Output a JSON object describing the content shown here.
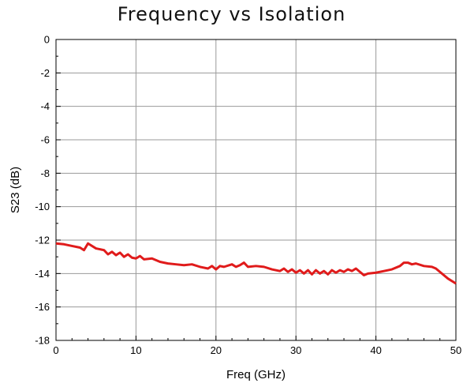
{
  "chart_data": {
    "type": "line",
    "title": "Frequency vs Isolation",
    "xlabel": "Freq  (GHz)",
    "ylabel": "S23  (dB)",
    "xlim": [
      0,
      50
    ],
    "ylim": [
      -18,
      0
    ],
    "x_ticks": [
      0,
      10,
      20,
      30,
      40,
      50
    ],
    "y_ticks": [
      0,
      -2,
      -4,
      -6,
      -8,
      -10,
      -12,
      -14,
      -16,
      -18
    ],
    "grid": true,
    "line_color": "#e01b1b",
    "series": [
      {
        "x": [
          0,
          1,
          2,
          3,
          3.5,
          4,
          5,
          6,
          6.5,
          7,
          7.5,
          8,
          8.5,
          9,
          9.5,
          10,
          10.5,
          11,
          12,
          13,
          14,
          15,
          16,
          17,
          18,
          19,
          19.5,
          20,
          20.5,
          21,
          22,
          22.5,
          23,
          23.5,
          24,
          25,
          26,
          27,
          28,
          28.5,
          29,
          29.5,
          30,
          30.5,
          31,
          31.5,
          32,
          32.5,
          33,
          33.5,
          34,
          34.5,
          35,
          35.5,
          36,
          36.5,
          37,
          37.5,
          38,
          38.5,
          39,
          40,
          41,
          42,
          43,
          43.5,
          44,
          44.5,
          45,
          46,
          47,
          47.5,
          48,
          49,
          50
        ],
        "y": [
          -12.2,
          -12.25,
          -12.35,
          -12.45,
          -12.6,
          -12.2,
          -12.5,
          -12.6,
          -12.85,
          -12.7,
          -12.9,
          -12.75,
          -13.0,
          -12.85,
          -13.05,
          -13.1,
          -12.95,
          -13.15,
          -13.1,
          -13.3,
          -13.4,
          -13.45,
          -13.5,
          -13.45,
          -13.6,
          -13.7,
          -13.55,
          -13.75,
          -13.55,
          -13.6,
          -13.45,
          -13.6,
          -13.5,
          -13.35,
          -13.6,
          -13.55,
          -13.6,
          -13.75,
          -13.85,
          -13.7,
          -13.9,
          -13.75,
          -13.95,
          -13.8,
          -14.0,
          -13.8,
          -14.05,
          -13.8,
          -14.0,
          -13.85,
          -14.05,
          -13.8,
          -13.95,
          -13.8,
          -13.9,
          -13.75,
          -13.85,
          -13.7,
          -13.9,
          -14.1,
          -14.0,
          -13.95,
          -13.85,
          -13.75,
          -13.55,
          -13.35,
          -13.35,
          -13.45,
          -13.4,
          -13.55,
          -13.6,
          -13.7,
          -13.9,
          -14.3,
          -14.6
        ]
      }
    ]
  }
}
